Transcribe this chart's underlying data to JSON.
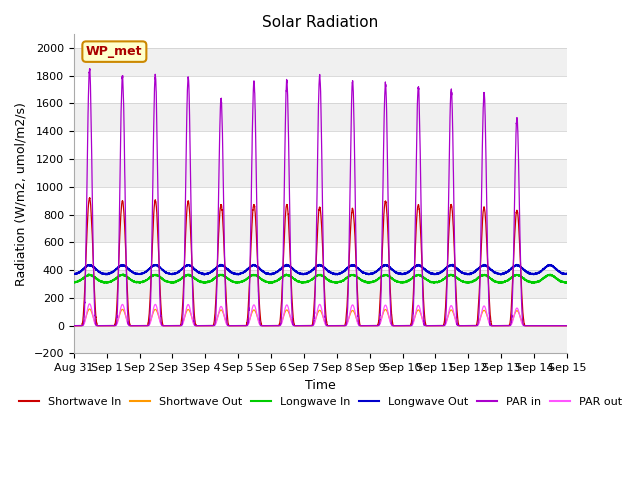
{
  "title": "Solar Radiation",
  "xlabel": "Time",
  "ylabel": "Radiation (W/m2, umol/m2/s)",
  "ylim": [
    -200,
    2100
  ],
  "yticks": [
    -200,
    0,
    200,
    400,
    600,
    800,
    1000,
    1200,
    1400,
    1600,
    1800,
    2000
  ],
  "legend_label": "WP_met",
  "n_days": 15,
  "xtick_labels": [
    "Aug 31",
    "Sep 1",
    "Sep 2",
    "Sep 3",
    "Sep 4",
    "Sep 5",
    "Sep 6",
    "Sep 7",
    "Sep 8",
    "Sep 9",
    "Sep 10",
    "Sep 11",
    "Sep 12",
    "Sep 13",
    "Sep 14",
    "Sep 15"
  ],
  "series": {
    "shortwave_in": {
      "color": "#cc0000",
      "label": "Shortwave In"
    },
    "shortwave_out": {
      "color": "#ff9900",
      "label": "Shortwave Out"
    },
    "longwave_in": {
      "color": "#00cc00",
      "label": "Longwave In"
    },
    "longwave_out": {
      "color": "#0000cc",
      "label": "Longwave Out"
    },
    "par_in": {
      "color": "#aa00cc",
      "label": "PAR in"
    },
    "par_out": {
      "color": "#ff55ff",
      "label": "PAR out"
    }
  },
  "par_in_peaks": [
    1850,
    1800,
    1800,
    1790,
    1630,
    1760,
    1760,
    1800,
    1760,
    1740,
    1720,
    1700,
    1670,
    1490,
    0
  ],
  "sw_in_peaks": [
    920,
    900,
    900,
    895,
    870,
    870,
    870,
    850,
    840,
    895,
    870,
    870,
    850,
    830,
    0
  ],
  "background_color": "#ffffff",
  "plot_bg_light": "#f0f0f0",
  "grid_color": "#cccccc"
}
